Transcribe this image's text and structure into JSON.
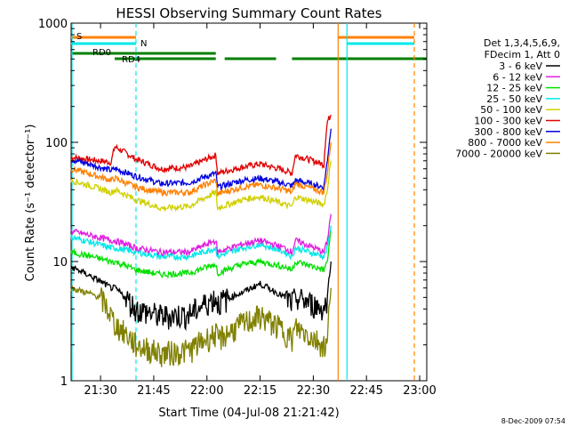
{
  "chart_data": {
    "type": "line",
    "title": "HESSI Observing Summary Count Rates",
    "xlabel": "Start Time (04-Jul-08 21:21:42)",
    "ylabel": "Count Rate (s⁻¹ detector⁻¹)",
    "xlim": [
      "21:21:42",
      "23:02:00"
    ],
    "ylim": [
      1,
      1000
    ],
    "yscale": "log",
    "x_ticks": [
      "21:30",
      "21:45",
      "22:00",
      "22:15",
      "22:30",
      "22:45",
      "23:00"
    ],
    "y_ticks": [
      "1",
      "10",
      "100",
      "1000"
    ],
    "timestamp": "8-Dec-2009 07:54",
    "legend": {
      "position": "right",
      "header": [
        "Det 1,3,4,5,6,9,",
        "FDecim 1, Att 0"
      ],
      "entries": [
        {
          "label": "3 - 6 keV",
          "color": "#000000"
        },
        {
          "label": "6 - 12 keV",
          "color": "#e020e0"
        },
        {
          "label": "12 - 25 keV",
          "color": "#00e000"
        },
        {
          "label": "25 - 50 keV",
          "color": "#00e8e8"
        },
        {
          "label": "50 - 100 keV",
          "color": "#d0d000"
        },
        {
          "label": "100 - 300 keV",
          "color": "#e00000"
        },
        {
          "label": "300 - 800 keV",
          "color": "#0000e0"
        },
        {
          "label": "800 - 7000 keV",
          "color": "#ff8000"
        },
        {
          "label": "7000 - 20000 keV",
          "color": "#808000"
        }
      ]
    },
    "flags": [
      {
        "label": "S",
        "color": "#ff8000",
        "segments": [
          [
            "21:21:42",
            "21:40:00"
          ],
          [
            "22:37:00",
            "22:58:30"
          ]
        ]
      },
      {
        "label": "N",
        "color": "#00e8e8",
        "segments": [
          [
            "21:21:42",
            "21:40:00"
          ],
          [
            "22:39:30",
            "22:58:30"
          ]
        ]
      },
      {
        "label": "RD0",
        "color": "#008000",
        "segments": [
          [
            "21:21:42",
            "22:02:30"
          ]
        ]
      },
      {
        "label": "RD4",
        "color": "#008000",
        "segments": [
          [
            "21:34:00",
            "22:02:30"
          ],
          [
            "22:05:00",
            "22:19:30"
          ],
          [
            "22:24:00",
            "23:02:00"
          ]
        ]
      }
    ],
    "series": [
      {
        "name": "100 - 300 keV",
        "color": "#e00000",
        "x": [
          "21:21:42",
          "21:33:00",
          "21:34:00",
          "21:40:00",
          "21:47:00",
          "21:55:00",
          "22:02:30",
          "22:03:00",
          "22:10:00",
          "22:15:00",
          "22:22:00",
          "22:24:00",
          "22:25:00",
          "22:33:00",
          "22:34:00",
          "22:35:00"
        ],
        "y": [
          75,
          68,
          92,
          72,
          60,
          62,
          78,
          55,
          62,
          66,
          58,
          55,
          78,
          65,
          150,
          170
        ]
      },
      {
        "name": "300 - 800 keV",
        "color": "#0000e0",
        "x": [
          "21:21:42",
          "21:33:00",
          "21:34:00",
          "21:40:00",
          "21:47:00",
          "21:55:00",
          "22:02:30",
          "22:03:00",
          "22:10:00",
          "22:15:00",
          "22:22:00",
          "22:24:00",
          "22:25:00",
          "22:33:00",
          "22:34:00",
          "22:35:00"
        ],
        "y": [
          72,
          58,
          60,
          52,
          45,
          46,
          55,
          42,
          48,
          50,
          45,
          43,
          48,
          42,
          70,
          130
        ]
      },
      {
        "name": "800 - 7000 keV",
        "color": "#ff8000",
        "x": [
          "21:21:42",
          "21:33:00",
          "21:34:00",
          "21:40:00",
          "21:47:00",
          "21:55:00",
          "22:02:30",
          "22:03:00",
          "22:10:00",
          "22:15:00",
          "22:22:00",
          "22:24:00",
          "22:25:00",
          "22:33:00",
          "22:34:00",
          "22:35:00"
        ],
        "y": [
          60,
          48,
          50,
          42,
          38,
          38,
          48,
          37,
          42,
          44,
          40,
          38,
          45,
          38,
          55,
          100
        ]
      },
      {
        "name": "50 - 100 keV",
        "color": "#d0d000",
        "x": [
          "21:21:42",
          "21:33:00",
          "21:34:00",
          "21:40:00",
          "21:47:00",
          "21:55:00",
          "22:02:30",
          "22:03:00",
          "22:10:00",
          "22:15:00",
          "22:22:00",
          "22:24:00",
          "22:25:00",
          "22:33:00",
          "22:34:00",
          "22:35:00"
        ],
        "y": [
          48,
          38,
          40,
          33,
          28,
          29,
          38,
          28,
          33,
          35,
          30,
          29,
          35,
          30,
          40,
          70
        ]
      },
      {
        "name": "25 - 50 keV",
        "color": "#00e8e8",
        "x": [
          "21:21:42",
          "21:33:00",
          "21:34:00",
          "21:40:00",
          "21:47:00",
          "21:55:00",
          "22:02:30",
          "22:03:00",
          "22:10:00",
          "22:15:00",
          "22:22:00",
          "22:24:00",
          "22:25:00",
          "22:33:00",
          "22:34:00",
          "22:35:00"
        ],
        "y": [
          16,
          13,
          13,
          12,
          11,
          11,
          13,
          11,
          13,
          14,
          12,
          11,
          13,
          11,
          13,
          20
        ]
      },
      {
        "name": "6 - 12 keV",
        "color": "#e020e0",
        "x": [
          "21:21:42",
          "21:33:00",
          "21:34:00",
          "21:40:00",
          "21:47:00",
          "21:55:00",
          "22:02:30",
          "22:03:00",
          "22:10:00",
          "22:15:00",
          "22:22:00",
          "22:24:00",
          "22:25:00",
          "22:33:00",
          "22:34:00",
          "22:35:00"
        ],
        "y": [
          18,
          15,
          15,
          13,
          12,
          12,
          15,
          12,
          14,
          15,
          13,
          12,
          15,
          12,
          15,
          25
        ]
      },
      {
        "name": "12 - 25 keV",
        "color": "#00e000",
        "x": [
          "21:21:42",
          "21:33:00",
          "21:34:00",
          "21:40:00",
          "21:47:00",
          "21:55:00",
          "22:02:30",
          "22:03:00",
          "22:10:00",
          "22:15:00",
          "22:22:00",
          "22:24:00",
          "22:25:00",
          "22:33:00",
          "22:34:00",
          "22:35:00"
        ],
        "y": [
          12,
          10,
          10,
          8.5,
          7.8,
          8,
          9.5,
          8,
          9.5,
          10,
          9,
          8.5,
          10,
          8.5,
          10,
          18
        ]
      },
      {
        "name": "3 - 6 keV",
        "color": "#000000",
        "x": [
          "21:21:42",
          "21:33:00",
          "21:34:00",
          "21:40:00",
          "21:47:00",
          "21:55:00",
          "22:02:30",
          "22:03:00",
          "22:10:00",
          "22:15:00",
          "22:22:00",
          "22:24:00",
          "22:25:00",
          "22:33:00",
          "22:34:00",
          "22:35:00"
        ],
        "y": [
          9,
          6,
          6,
          4,
          3.5,
          3.6,
          5,
          4.5,
          5.5,
          6.5,
          5,
          4.5,
          5,
          4,
          5,
          10
        ]
      },
      {
        "name": "7000 - 20000 keV",
        "color": "#808000",
        "x": [
          "21:21:42",
          "21:30:00",
          "21:34:00",
          "21:40:00",
          "21:47:00",
          "21:55:00",
          "22:02:30",
          "22:03:00",
          "22:10:00",
          "22:15:00",
          "22:22:00",
          "22:24:00",
          "22:25:00",
          "22:33:00",
          "22:34:00",
          "22:35:00"
        ],
        "y": [
          6,
          5,
          3,
          2,
          1.7,
          1.8,
          2.5,
          2.2,
          3,
          3.5,
          2.6,
          2.2,
          2.8,
          2,
          2,
          6
        ]
      }
    ]
  }
}
